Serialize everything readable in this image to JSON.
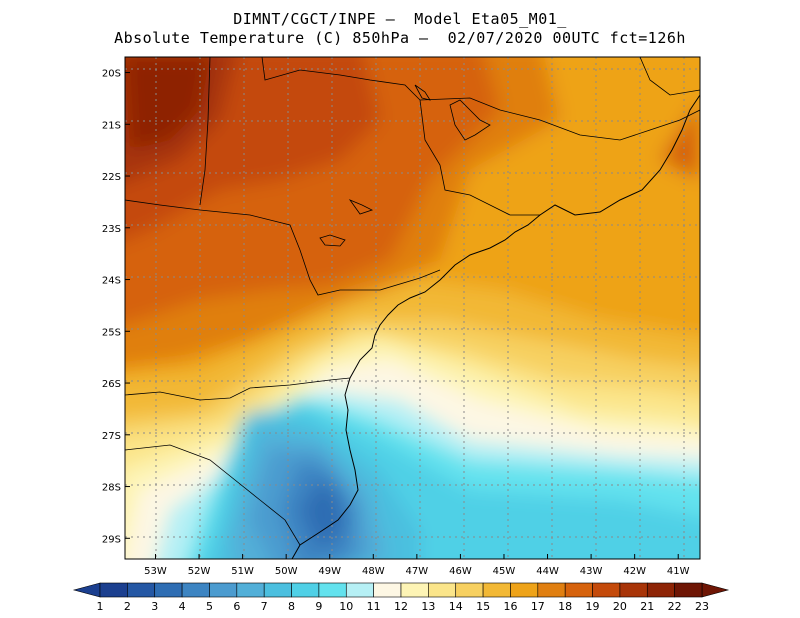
{
  "header": {
    "line1": "DIMNT/CGCT/INPE –  Model Eta05_M01_",
    "line2": "Absolute Temperature (C) 850hPa –  02/07/2020 00UTC fct=126h"
  },
  "axes": {
    "lat_labels": [
      "20S",
      "21S",
      "22S",
      "23S",
      "24S",
      "25S",
      "26S",
      "27S",
      "28S",
      "29S"
    ],
    "lat_values": [
      -20,
      -21,
      -22,
      -23,
      -24,
      -25,
      -26,
      -27,
      -28,
      -29
    ],
    "lon_labels": [
      "53W",
      "52W",
      "51W",
      "50W",
      "49W",
      "48W",
      "47W",
      "46W",
      "45W",
      "44W",
      "43W",
      "42W",
      "41W"
    ],
    "lon_values": [
      -53,
      -52,
      -51,
      -50,
      -49,
      -48,
      -47,
      -46,
      -45,
      -44,
      -43,
      -42,
      -41
    ],
    "lon_range": [
      -53.7,
      -40.5
    ],
    "lat_range": [
      -29.4,
      -19.7
    ],
    "grid": true
  },
  "colorbar": {
    "labels": [
      "1",
      "2",
      "3",
      "4",
      "5",
      "6",
      "7",
      "8",
      "9",
      "10",
      "11",
      "12",
      "13",
      "14",
      "15",
      "16",
      "17",
      "18",
      "19",
      "20",
      "21",
      "22",
      "23"
    ],
    "colors": [
      "#1b3f8f",
      "#2457a4",
      "#2e6db3",
      "#3c84c2",
      "#4b9bcf",
      "#52afd8",
      "#4bbfdf",
      "#4fd0e6",
      "#63e2ee",
      "#b6f0f5",
      "#fdf7e4",
      "#fdf4b5",
      "#fbe58a",
      "#f7d060",
      "#f2b835",
      "#eea319",
      "#e07f11",
      "#d6620c",
      "#c44a0a",
      "#a83408",
      "#8e2406",
      "#6f1605"
    ],
    "position": "bottom"
  }
}
